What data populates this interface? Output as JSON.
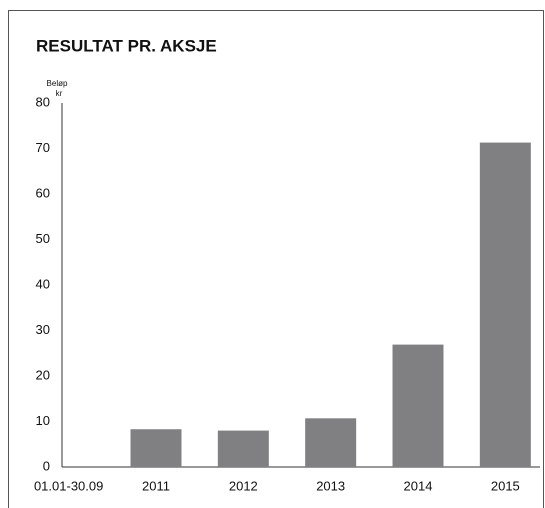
{
  "chart_data": {
    "type": "bar",
    "title": "RESULTAT PR. AKSJE",
    "y_label": [
      "Beløp",
      "kr"
    ],
    "categories": [
      "01.01-30.09",
      "2011",
      "2012",
      "2013",
      "2014",
      "2015"
    ],
    "values": [
      0,
      8.3,
      8.0,
      10.7,
      26.9,
      71.3
    ],
    "color": "#808083",
    "ylim": [
      0,
      80
    ],
    "yticks": [
      0,
      10,
      20,
      30,
      40,
      50,
      60,
      70,
      80
    ],
    "grid": false
  }
}
